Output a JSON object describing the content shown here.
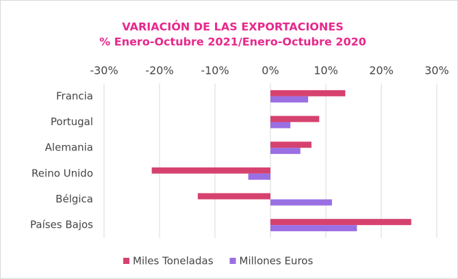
{
  "chart_data": {
    "type": "bar",
    "orientation": "horizontal",
    "title": "VARIACIÓN DE LAS EXPORTACIONES",
    "subtitle": "% Enero-Octubre 2021/Enero-Octubre 2020",
    "categories": [
      "Francia",
      "Portugal",
      "Alemania",
      "Reino Unido",
      "Bélgica",
      "Países Bajos"
    ],
    "series": [
      {
        "name": "Miles Toneladas",
        "color": "#d6426f",
        "values": [
          13.5,
          8.8,
          7.4,
          -21.4,
          -13.1,
          25.4
        ]
      },
      {
        "name": "Millones Euros",
        "color": "#9a6fe3",
        "values": [
          6.8,
          3.6,
          5.4,
          -4.0,
          11.1,
          15.6
        ]
      }
    ],
    "xlim": [
      -30,
      30
    ],
    "xticks": [
      {
        "value": -30,
        "label": "-30%"
      },
      {
        "value": -20,
        "label": "-20%"
      },
      {
        "value": -10,
        "label": "-10%"
      },
      {
        "value": 0,
        "label": "0%"
      },
      {
        "value": 10,
        "label": "10%"
      },
      {
        "value": 20,
        "label": "20%"
      },
      {
        "value": 30,
        "label": "30%"
      }
    ],
    "grid": true,
    "legend": "bottom"
  }
}
